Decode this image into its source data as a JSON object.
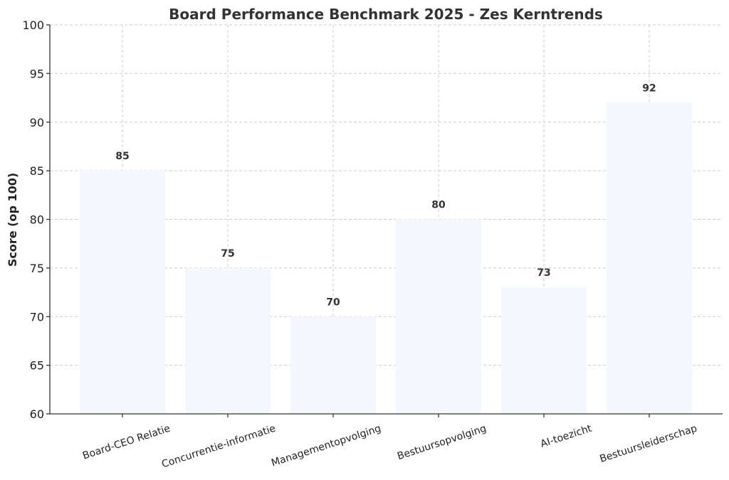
{
  "chart_data": {
    "type": "bar",
    "title": "Board Performance Benchmark 2025 - Zes Kerntrends",
    "ylabel": "Score (op 100)",
    "xlabel": "",
    "categories": [
      "Board-CEO Relatie",
      "Concurrentie-informatie",
      "Managementopvolging",
      "Bestuursopvolging",
      "AI-toezicht",
      "Bestuursleiderschap"
    ],
    "values": [
      85,
      75,
      70,
      80,
      73,
      92
    ],
    "ylim": [
      60,
      100
    ],
    "yticks": [
      60,
      65,
      70,
      75,
      80,
      85,
      90,
      95,
      100
    ],
    "grid": true,
    "bar_color": "#f4f8fd"
  }
}
